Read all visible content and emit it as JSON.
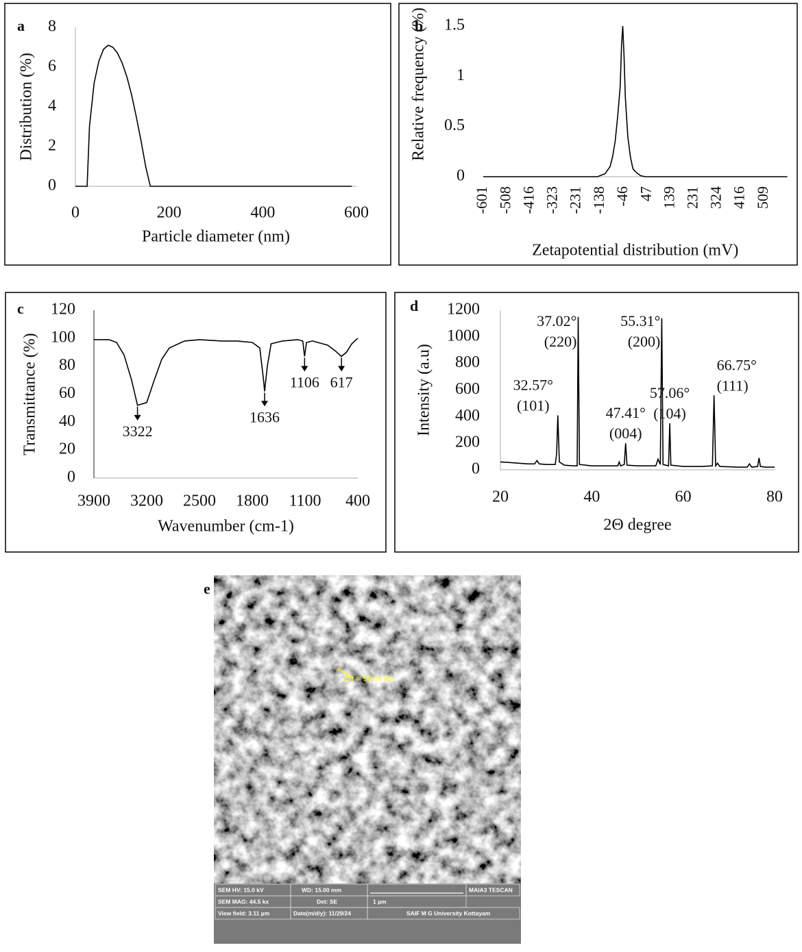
{
  "chart_data": [
    {
      "type": "line",
      "panel_label": "a",
      "xlabel": "Particle diameter (nm)",
      "ylabel": "Distribution (%)",
      "color": "#000000",
      "xlim": [
        0,
        600
      ],
      "xticks": [
        0,
        200,
        400,
        600
      ],
      "ylim": [
        0,
        8
      ],
      "yticks": [
        0,
        2,
        4,
        6,
        8
      ],
      "x": [
        0,
        25,
        30,
        40,
        50,
        60,
        70,
        80,
        90,
        100,
        110,
        120,
        130,
        140,
        150,
        160,
        200,
        300,
        400,
        500,
        590
      ],
      "values": [
        0,
        0,
        3.0,
        5.2,
        6.3,
        6.9,
        7.1,
        7.0,
        6.7,
        6.2,
        5.5,
        4.6,
        3.5,
        2.3,
        1.0,
        0,
        0,
        0,
        0,
        0,
        0
      ]
    },
    {
      "type": "line",
      "panel_label": "b",
      "xlabel": "Zetapotential distribution (mV)",
      "ylabel": "Relative frequency (%)",
      "color": "#000000",
      "xlim": [
        -601,
        600
      ],
      "xticks": [
        -601,
        -508,
        -416,
        -323,
        -231,
        -138,
        -46,
        47,
        139,
        231,
        324,
        416,
        509
      ],
      "ylim": [
        0,
        1.5
      ],
      "yticks": [
        0,
        0.5,
        1,
        1.5
      ],
      "x": [
        -601,
        -150,
        -120,
        -100,
        -90,
        -80,
        -70,
        -60,
        -55,
        -50,
        -45,
        -40,
        -30,
        -20,
        -10,
        0,
        10,
        20,
        40,
        600
      ],
      "values": [
        0,
        0,
        0.03,
        0.1,
        0.2,
        0.35,
        0.6,
        0.9,
        1.3,
        1.5,
        1.2,
        0.8,
        0.4,
        0.2,
        0.08,
        0.05,
        0.03,
        0.01,
        0,
        0
      ]
    },
    {
      "type": "line",
      "panel_label": "c",
      "xlabel": "Wavenumber (cm-1)",
      "ylabel": "Transmittance (%)",
      "color": "#000000",
      "xlim": [
        3900,
        400
      ],
      "xticks": [
        3900,
        3200,
        2500,
        1800,
        1100,
        400
      ],
      "ylim": [
        0,
        120
      ],
      "yticks": [
        0,
        20,
        40,
        60,
        80,
        100,
        120
      ],
      "x": [
        3900,
        3700,
        3600,
        3500,
        3400,
        3322,
        3200,
        3100,
        3000,
        2900,
        2700,
        2500,
        2200,
        2000,
        1800,
        1700,
        1650,
        1636,
        1600,
        1550,
        1400,
        1200,
        1130,
        1106,
        1080,
        1000,
        800,
        700,
        617,
        550,
        480,
        400
      ],
      "values": [
        99,
        99,
        97,
        88,
        70,
        52,
        54,
        70,
        85,
        93,
        98,
        99,
        98,
        98,
        97,
        93,
        70,
        62,
        80,
        96,
        98,
        99,
        98,
        87,
        97,
        98,
        95,
        91,
        87,
        90,
        96,
        100
      ],
      "annotations": [
        {
          "text": "3322",
          "x": 3322
        },
        {
          "text": "1636",
          "x": 1636
        },
        {
          "text": "1106",
          "x": 1106
        },
        {
          "text": "617",
          "x": 617
        }
      ]
    },
    {
      "type": "line",
      "panel_label": "d",
      "xlabel": "2Θ degree",
      "ylabel": "Intensity (a.u)",
      "color": "#000000",
      "xlim": [
        20,
        80
      ],
      "xticks": [
        20,
        40,
        60,
        80
      ],
      "ylim": [
        0,
        1200
      ],
      "yticks": [
        0,
        200,
        400,
        600,
        800,
        1000,
        1200
      ],
      "x": [
        20,
        22,
        24,
        26,
        27.5,
        28,
        28.5,
        30,
        32,
        32.3,
        32.57,
        32.9,
        34,
        36,
        36.8,
        37.02,
        37.3,
        40,
        44,
        45.7,
        46,
        46.3,
        47.1,
        47.41,
        47.7,
        50,
        54,
        54.5,
        55,
        55.31,
        55.6,
        56.8,
        57.06,
        57.3,
        60,
        64,
        66.4,
        66.75,
        67.1,
        67.5,
        68,
        72,
        74,
        74.5,
        75,
        76.3,
        76.6,
        76.9,
        78,
        80
      ],
      "values": [
        60,
        55,
        50,
        45,
        45,
        70,
        45,
        40,
        40,
        120,
        410,
        60,
        35,
        30,
        30,
        1150,
        40,
        30,
        30,
        30,
        60,
        30,
        40,
        200,
        35,
        30,
        30,
        80,
        40,
        1140,
        40,
        30,
        350,
        35,
        25,
        25,
        30,
        560,
        30,
        50,
        25,
        20,
        20,
        45,
        20,
        25,
        90,
        25,
        20,
        20
      ],
      "annotations": [
        {
          "angle": "32.57°",
          "plane": "(101)",
          "x": 32.57
        },
        {
          "angle": "37.02°",
          "plane": "(220)",
          "x": 37.02
        },
        {
          "angle": "47.41°",
          "plane": "(004)",
          "x": 47.41
        },
        {
          "angle": "55.31°",
          "plane": "(200)",
          "x": 55.31
        },
        {
          "angle": "57.06°",
          "plane": "(104)",
          "x": 57.06
        },
        {
          "angle": "66.75°",
          "plane": "(111)",
          "x": 66.75
        }
      ]
    }
  ],
  "sem_image": {
    "panel_label": "e",
    "measurement": "D1 = 59.04 nm",
    "info_bar": {
      "hv": "SEM HV: 15.0 kV",
      "wd": "WD: 15.00 mm",
      "brand": "MAIA3 TESCAN",
      "mag": "SEM MAG: 44.5 kx",
      "det": "Det: SE",
      "scale": "1 µm",
      "view_field": "View field: 3.11 µm",
      "date": "Date(m/d/y): 11/29/24",
      "lab": "SAIF M G University Kottayam"
    }
  }
}
